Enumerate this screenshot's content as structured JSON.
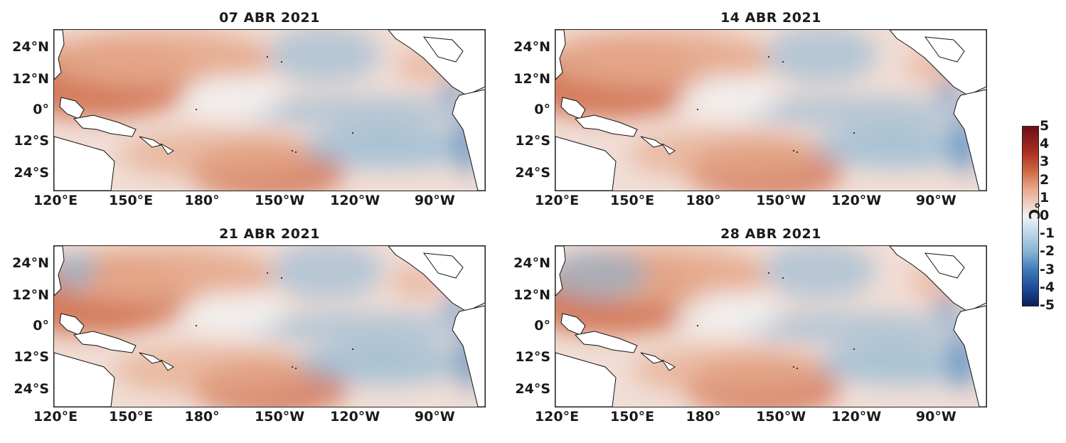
{
  "panels": [
    {
      "title": "07 ABR 2021",
      "variant": 0
    },
    {
      "title": "14 ABR 2021",
      "variant": 1
    },
    {
      "title": "21 ABR 2021",
      "variant": 2
    },
    {
      "title": "28 ABR 2021",
      "variant": 3
    }
  ],
  "axes": {
    "lat_labels": [
      "24°N",
      "12°N",
      "0°",
      "12°S",
      "24°S"
    ],
    "lon_labels": [
      "120°E",
      "150°E",
      "180°",
      "150°W",
      "120°W",
      "90°W"
    ]
  },
  "colorbar": {
    "ticks": [
      "5",
      "4",
      "3",
      "2",
      "1",
      "0",
      "-1",
      "-2",
      "-3",
      "-4",
      "-5"
    ],
    "unit": "°C",
    "colors": {
      "pos_max": "#6a0f18",
      "pos": "#cf6a45",
      "zero": "#f2f2f2",
      "neg": "#3d7ab8",
      "neg_max": "#0d1f55"
    }
  }
}
